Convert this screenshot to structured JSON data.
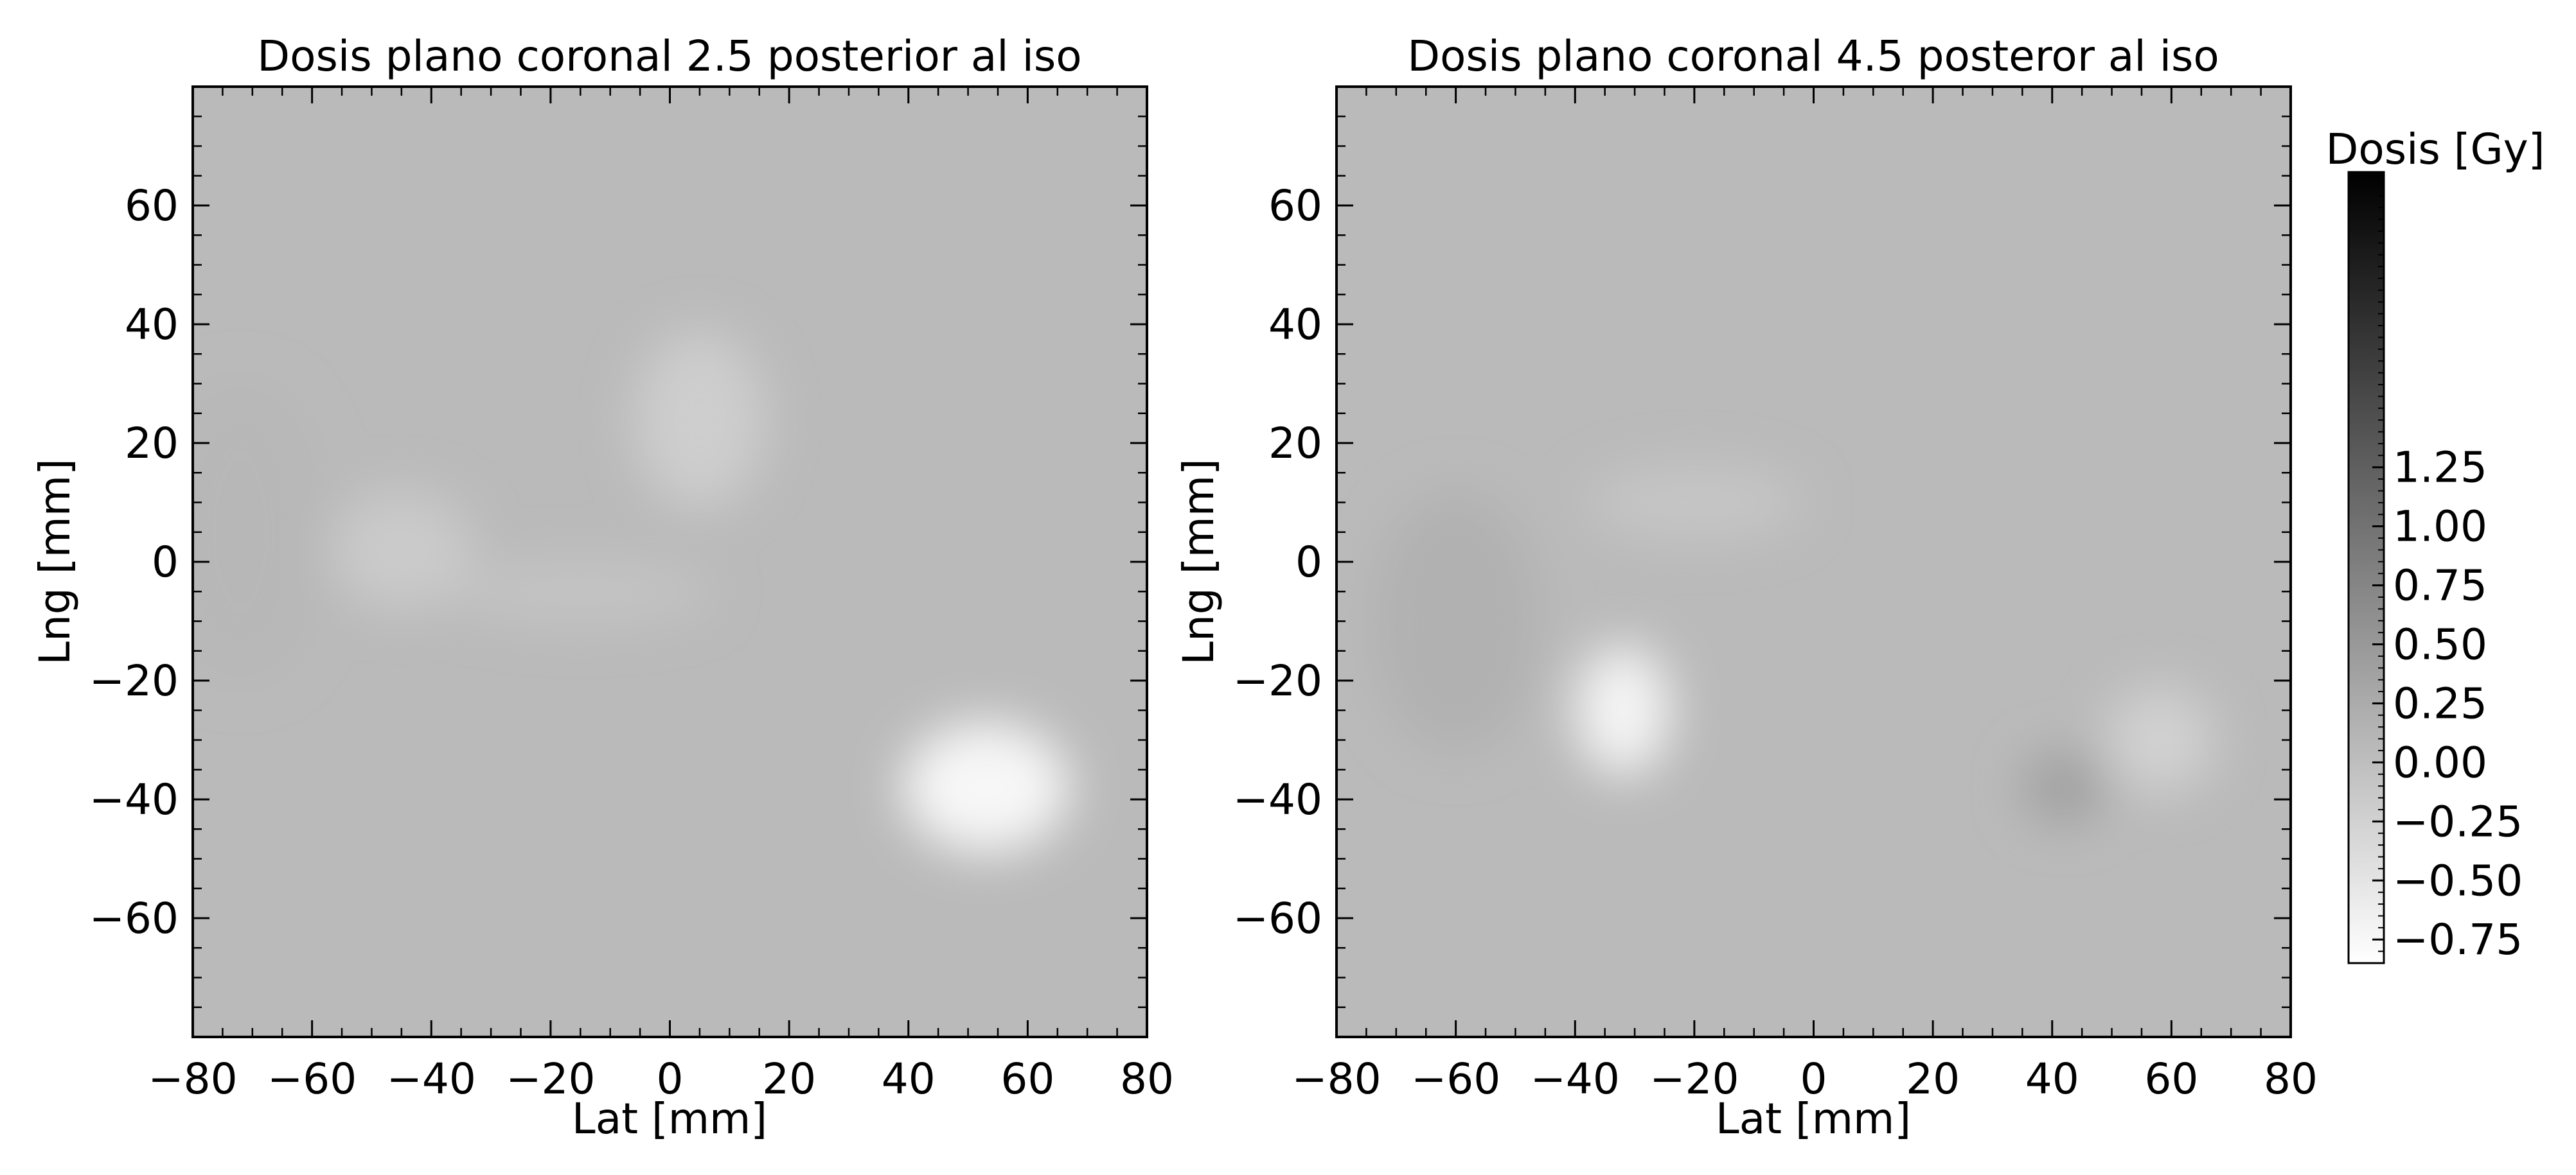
{
  "chart_data": [
    {
      "type": "heatmap",
      "title": "Dosis plano coronal 2.5 posterior al iso",
      "xlabel": "Lat [mm]",
      "ylabel": "Lng [mm]",
      "xlim": [
        -80,
        80
      ],
      "ylim": [
        -80,
        80
      ],
      "xticks": [
        -80,
        -60,
        -40,
        -20,
        0,
        20,
        40,
        60,
        80
      ],
      "yticks": [
        -60,
        -40,
        -20,
        0,
        20,
        40,
        60
      ],
      "xtick_labels": [
        "−80",
        "−60",
        "−40",
        "−20",
        "0",
        "20",
        "40",
        "60",
        "80"
      ],
      "ytick_labels": [
        "−60",
        "−40",
        "−20",
        "0",
        "20",
        "40",
        "60"
      ],
      "colormap": "gray_r",
      "background_dose": 0.05,
      "features": [
        {
          "kind": "low",
          "x": 53,
          "y": -38,
          "rx": 14,
          "ry": 11,
          "dose": -0.75
        },
        {
          "kind": "low",
          "x": 5,
          "y": 24,
          "rx": 11,
          "ry": 15,
          "dose": -0.2
        },
        {
          "kind": "low",
          "x": -45,
          "y": 2,
          "rx": 12,
          "ry": 10,
          "dose": -0.15
        },
        {
          "kind": "low",
          "x": -15,
          "y": -5,
          "rx": 22,
          "ry": 5,
          "dose": -0.08
        },
        {
          "kind": "high",
          "x": -72,
          "y": 5,
          "rx": 14,
          "ry": 25,
          "dose": 0.1
        }
      ]
    },
    {
      "type": "heatmap",
      "title": "Dosis plano coronal 4.5 posteror al iso",
      "xlabel": "Lat [mm]",
      "ylabel": "Lng [mm]",
      "xlim": [
        -80,
        80
      ],
      "ylim": [
        -80,
        80
      ],
      "xticks": [
        -80,
        -60,
        -40,
        -20,
        0,
        20,
        40,
        60,
        80
      ],
      "yticks": [
        -60,
        -40,
        -20,
        0,
        20,
        40,
        60
      ],
      "xtick_labels": [
        "−80",
        "−60",
        "−40",
        "−20",
        "0",
        "20",
        "40",
        "60",
        "80"
      ],
      "ytick_labels": [
        "−60",
        "−40",
        "−20",
        "0",
        "20",
        "40",
        "60"
      ],
      "colormap": "gray_r",
      "background_dose": 0.05,
      "features": [
        {
          "kind": "low",
          "x": -32,
          "y": -25,
          "rx": 8,
          "ry": 11,
          "dose": -0.7
        },
        {
          "kind": "high",
          "x": 42,
          "y": -38,
          "rx": 7,
          "ry": 6,
          "dose": 0.4
        },
        {
          "kind": "high",
          "x": -60,
          "y": -10,
          "rx": 14,
          "ry": 22,
          "dose": 0.18
        },
        {
          "kind": "low",
          "x": 58,
          "y": -30,
          "rx": 9,
          "ry": 9,
          "dose": -0.25
        },
        {
          "kind": "low",
          "x": -20,
          "y": 10,
          "rx": 18,
          "ry": 6,
          "dose": -0.1
        }
      ]
    }
  ],
  "colorbar": {
    "title": "Dosis [Gy]",
    "ticks": [
      1.25,
      1.0,
      0.75,
      0.5,
      0.25,
      0.0,
      -0.25,
      -0.5,
      -0.75
    ],
    "tick_labels": [
      "1.25",
      "1.00",
      "0.75",
      "0.50",
      "0.25",
      "0.00",
      "−0.25",
      "−0.50",
      "−0.75"
    ],
    "range": [
      -0.85,
      2.5
    ],
    "colormap": "gray_r"
  }
}
